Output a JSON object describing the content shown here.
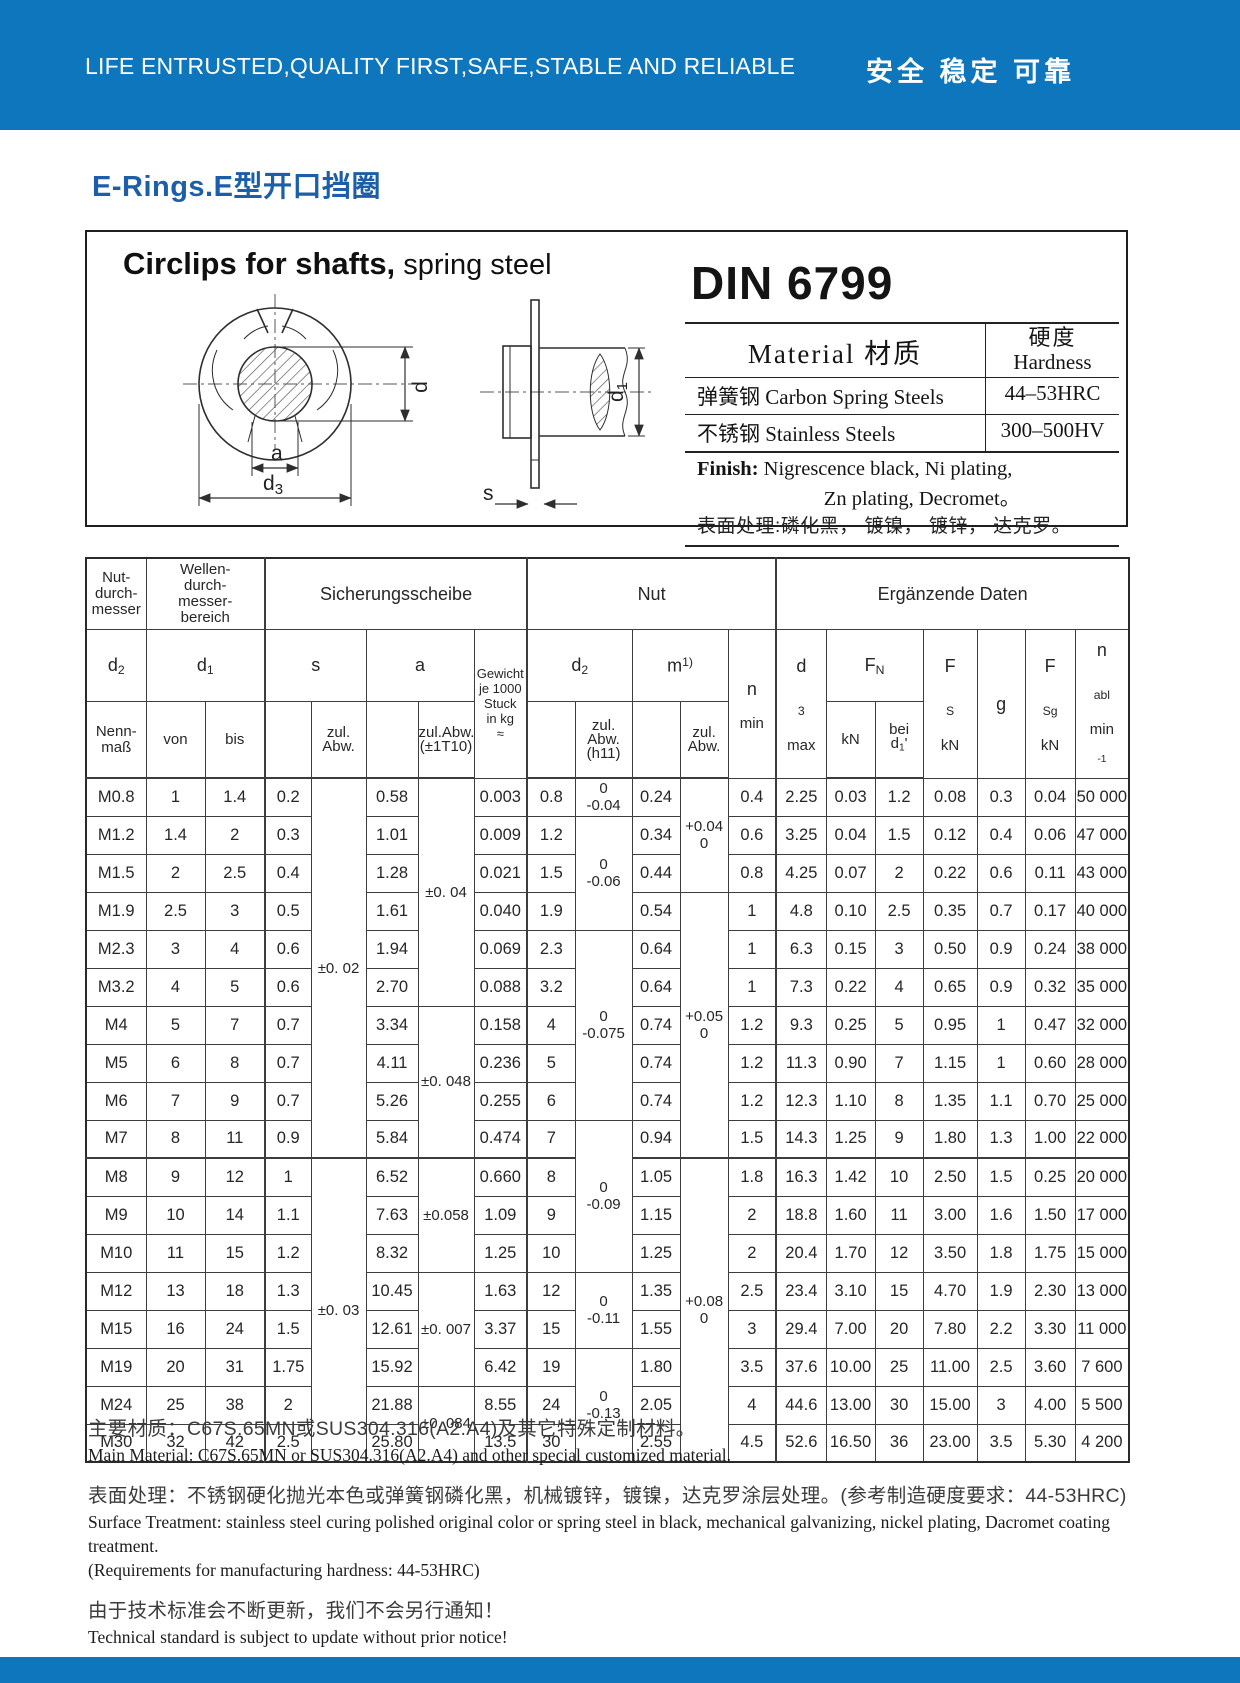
{
  "header": {
    "slogan": "LIFE ENTRUSTED,QUALITY FIRST,SAFE,STABLE AND RELIABLE",
    "motto_cn": "安全  稳定  可靠"
  },
  "page_title": "E-Rings.E型开口挡圈",
  "product_box": {
    "heading_bold": "Circlips for shafts,",
    "heading_light": " spring steel",
    "standard": "DIN 6799",
    "drawing": {
      "a": "a",
      "d": "d",
      "d1b": "d",
      "d1s": "1",
      "d3b": "d",
      "d3s": "3",
      "s": "s"
    },
    "material_table": {
      "header_material": "Material  材质",
      "header_hardness_cn": "硬度",
      "header_hardness_en": "Hardness",
      "rows": [
        {
          "material": "弹簧钢  Carbon Spring  Steels",
          "hardness": "44–53HRC"
        },
        {
          "material": "不锈钢 Stainless Steels",
          "hardness": "300–500HV"
        }
      ],
      "finish_label": "Finish:",
      "finish_line1": " Nigrescence black,   Ni plating,",
      "finish_line2": "Zn plating,   Decromet。",
      "finish_line3": "表面处理:磷化黑， 镀镍， 镀锌， 达克罗。"
    }
  },
  "table": {
    "h": {
      "nut_durchmesser": "Nut-\ndurch-\nmesser",
      "wellen": "Wellen-\ndurch-\nmesser-\nbereich",
      "sicherungsscheibe": "Sicherungsscheibe",
      "nut": "Nut",
      "ergaenzende": "Ergänzende Daten",
      "d2b": "d",
      "d2s": "2",
      "nennmass": "Nenn-\nmaß",
      "d1b": "d",
      "d1s": "1",
      "von": "von",
      "bis": "bis",
      "s": "s",
      "a": "a",
      "gewicht": "Gewicht\nje  1000\nStuck\nin kg\n≈",
      "zul_abw": "zul.\nAbw.",
      "zul_abw_1t10": "zul.Abw.\n(±1T10)",
      "zul_abw_h11": "zul.\nAbw.\n(h11)",
      "mb": "m",
      "msup": "1)",
      "n": "n",
      "min": "min",
      "d3b": "d",
      "d3s": "3",
      "max": "max",
      "fnb": "F",
      "fns": "N",
      "kn": "kN",
      "beil1": "bei",
      "beib": "d",
      "beis": "1",
      "beip": "'",
      "fsb": "F",
      "fss": "S",
      "g": "g",
      "fsgb": "F",
      "fsgs": "Sg",
      "nablb": "n",
      "nabls": "abl",
      "minb": "min",
      "minsup": "-1"
    },
    "rows": [
      [
        "M0.8",
        "1",
        "1.4",
        "0.2",
        "0.58",
        "0.003",
        "0.8",
        "0.24",
        "0.4",
        "2.25",
        "0.03",
        "1.2",
        "0.08",
        "0.3",
        "0.04",
        "50 000"
      ],
      [
        "M1.2",
        "1.4",
        "2",
        "0.3",
        "1.01",
        "0.009",
        "1.2",
        "0.34",
        "0.6",
        "3.25",
        "0.04",
        "1.5",
        "0.12",
        "0.4",
        "0.06",
        "47 000"
      ],
      [
        "M1.5",
        "2",
        "2.5",
        "0.4",
        "1.28",
        "0.021",
        "1.5",
        "0.44",
        "0.8",
        "4.25",
        "0.07",
        "2",
        "0.22",
        "0.6",
        "0.11",
        "43 000"
      ],
      [
        "M1.9",
        "2.5",
        "3",
        "0.5",
        "1.61",
        "0.040",
        "1.9",
        "0.54",
        "1",
        "4.8",
        "0.10",
        "2.5",
        "0.35",
        "0.7",
        "0.17",
        "40 000"
      ],
      [
        "M2.3",
        "3",
        "4",
        "0.6",
        "1.94",
        "0.069",
        "2.3",
        "0.64",
        "1",
        "6.3",
        "0.15",
        "3",
        "0.50",
        "0.9",
        "0.24",
        "38 000"
      ],
      [
        "M3.2",
        "4",
        "5",
        "0.6",
        "2.70",
        "0.088",
        "3.2",
        "0.64",
        "1",
        "7.3",
        "0.22",
        "4",
        "0.65",
        "0.9",
        "0.32",
        "35 000"
      ],
      [
        "M4",
        "5",
        "7",
        "0.7",
        "3.34",
        "0.158",
        "4",
        "0.74",
        "1.2",
        "9.3",
        "0.25",
        "5",
        "0.95",
        "1",
        "0.47",
        "32 000"
      ],
      [
        "M5",
        "6",
        "8",
        "0.7",
        "4.11",
        "0.236",
        "5",
        "0.74",
        "1.2",
        "11.3",
        "0.90",
        "7",
        "1.15",
        "1",
        "0.60",
        "28 000"
      ],
      [
        "M6",
        "7",
        "9",
        "0.7",
        "5.26",
        "0.255",
        "6",
        "0.74",
        "1.2",
        "12.3",
        "1.10",
        "8",
        "1.35",
        "1.1",
        "0.70",
        "25 000"
      ],
      [
        "M7",
        "8",
        "11",
        "0.9",
        "5.84",
        "0.474",
        "7",
        "0.94",
        "1.5",
        "14.3",
        "1.25",
        "9",
        "1.80",
        "1.3",
        "1.00",
        "22 000"
      ],
      [
        "M8",
        "9",
        "12",
        "1",
        "6.52",
        "0.660",
        "8",
        "1.05",
        "1.8",
        "16.3",
        "1.42",
        "10",
        "2.50",
        "1.5",
        "0.25",
        "20 000"
      ],
      [
        "M9",
        "10",
        "14",
        "1.1",
        "7.63",
        "1.09",
        "9",
        "1.15",
        "2",
        "18.8",
        "1.60",
        "11",
        "3.00",
        "1.6",
        "1.50",
        "17 000"
      ],
      [
        "M10",
        "11",
        "15",
        "1.2",
        "8.32",
        "1.25",
        "10",
        "1.25",
        "2",
        "20.4",
        "1.70",
        "12",
        "3.50",
        "1.8",
        "1.75",
        "15 000"
      ],
      [
        "M12",
        "13",
        "18",
        "1.3",
        "10.45",
        "1.63",
        "12",
        "1.35",
        "2.5",
        "23.4",
        "3.10",
        "15",
        "4.70",
        "1.9",
        "2.30",
        "13 000"
      ],
      [
        "M15",
        "16",
        "24",
        "1.5",
        "12.61",
        "3.37",
        "15",
        "1.55",
        "3",
        "29.4",
        "7.00",
        "20",
        "7.80",
        "2.2",
        "3.30",
        "11 000"
      ],
      [
        "M19",
        "20",
        "31",
        "1.75",
        "15.92",
        "6.42",
        "19",
        "1.80",
        "3.5",
        "37.6",
        "10.00",
        "25",
        "11.00",
        "2.5",
        "3.60",
        "7 600"
      ],
      [
        "M24",
        "25",
        "38",
        "2",
        "21.88",
        "8.55",
        "24",
        "2.05",
        "4",
        "44.6",
        "13.00",
        "30",
        "15.00",
        "3",
        "4.00",
        "5 500"
      ],
      [
        "M30",
        "32",
        "42",
        "2.5",
        "25.80",
        "13.5",
        "30",
        "2.55",
        "4.5",
        "52.6",
        "16.50",
        "36",
        "23.00",
        "3.5",
        "5.30",
        "4 200"
      ]
    ],
    "merged": {
      "s_abw": [
        {
          "start": 0,
          "span": 10,
          "text": "±0. 02"
        },
        {
          "start": 10,
          "span": 8,
          "text": "±0. 03"
        }
      ],
      "a_abw": [
        {
          "start": 0,
          "span": 6,
          "text": "±0. 04"
        },
        {
          "start": 6,
          "span": 4,
          "text": "±0. 048"
        },
        {
          "start": 10,
          "span": 3,
          "text": "±0.058"
        },
        {
          "start": 13,
          "span": 3,
          "text": "±0. 007"
        },
        {
          "start": 16,
          "span": 2,
          "text": "±0. 084"
        }
      ],
      "d2_abw": [
        {
          "start": 0,
          "span": 1,
          "text": "0\n-0.04"
        },
        {
          "start": 1,
          "span": 3,
          "text": "0\n-0.06"
        },
        {
          "start": 4,
          "span": 5,
          "text": "0\n-0.075"
        },
        {
          "start": 9,
          "span": 4,
          "text": "0\n-0.09"
        },
        {
          "start": 13,
          "span": 2,
          "text": "0\n-0.11"
        },
        {
          "start": 15,
          "span": 3,
          "text": "0\n-0.13"
        }
      ],
      "m_abw": [
        {
          "start": 0,
          "span": 3,
          "text": "+0.04\n0"
        },
        {
          "start": 3,
          "span": 7,
          "text": "+0.05\n0"
        },
        {
          "start": 10,
          "span": 8,
          "text": "+0.08\n0"
        }
      ]
    }
  },
  "footer": {
    "lines": [
      {
        "style": "cn",
        "gap": false,
        "text": "主要材质：C67S.65MN或SUS304.316(A2.A4)及其它特殊定制材料。"
      },
      {
        "style": "en",
        "gap": false,
        "text": "Main Material: C67S.65MN or SUS304.316(A2.A4) and other special customized material."
      },
      {
        "style": "cn",
        "gap": true,
        "text": "表面处理：不锈钢硬化抛光本色或弹簧钢磷化黑，机械镀锌，镀镍，达克罗涂层处理。(参考制造硬度要求：44-53HRC)"
      },
      {
        "style": "en",
        "gap": false,
        "text": "Surface Treatment: stainless steel curing polished original color or spring steel in black, mechanical galvanizing, nickel plating, Dacromet coating treatment."
      },
      {
        "style": "en",
        "gap": false,
        "text": "(Requirements for manufacturing hardness: 44-53HRC)"
      },
      {
        "style": "cn",
        "gap": true,
        "text": "由于技术标准会不断更新，我们不会另行通知！"
      },
      {
        "style": "en",
        "gap": false,
        "text": "Technical standard is subject to update without prior notice!"
      }
    ]
  }
}
